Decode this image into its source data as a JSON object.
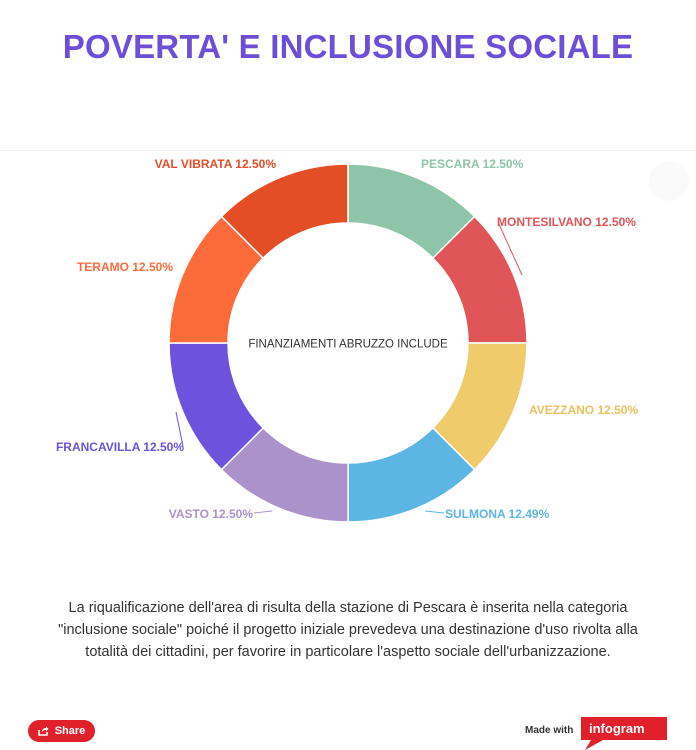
{
  "page": {
    "title": "POVERTA' E INCLUSIONE SOCIALE",
    "description": "La riqualificazione dell'area di risulta della stazione di Pescara è inserita nella categoria \"inclusione sociale\" poiché il progetto iniziale prevedeva una destinazione d'uso rivolta alla totalità dei cittadini, per favorire in particolare l'aspetto sociale dell'urbanizzazione.",
    "title_color": "#6c4fd6"
  },
  "footer": {
    "share_label": "Share",
    "made_with": "Made with",
    "brand": "infogram",
    "share_color": "#e0202a"
  },
  "chart_data": {
    "type": "pie",
    "subtype": "donut",
    "center_label": "FINANZIAMENTI ABRUZZO INCLUDE",
    "categories": [
      "PESCARA",
      "MONTESILVANO",
      "AVEZZANO",
      "SULMONA",
      "VASTO",
      "FRANCAVILLA",
      "TERAMO",
      "VAL VIBRATA"
    ],
    "values": [
      12.5,
      12.5,
      12.5,
      12.49,
      12.5,
      12.5,
      12.5,
      12.5
    ],
    "labels": [
      "PESCARA 12.50%",
      "MONTESILVANO 12.50%",
      "AVEZZANO 12.50%",
      "SULMONA 12.49%",
      "VASTO 12.50%",
      "FRANCAVILLA 12.50%",
      "TERAMO 12.50%",
      "VAL VIBRATA 12.50%"
    ],
    "colors": [
      "#8ec5a8",
      "#df5558",
      "#efcb6c",
      "#5db5e4",
      "#ab92cb",
      "#6c52dc",
      "#fd6b3b",
      "#e44e25"
    ],
    "label_colors": [
      "#8ec5a8",
      "#df5558",
      "#e7c25e",
      "#5db5e4",
      "#ab92cb",
      "#6c52dc",
      "#fd6b3b",
      "#e44e25"
    ],
    "legend": "none"
  }
}
